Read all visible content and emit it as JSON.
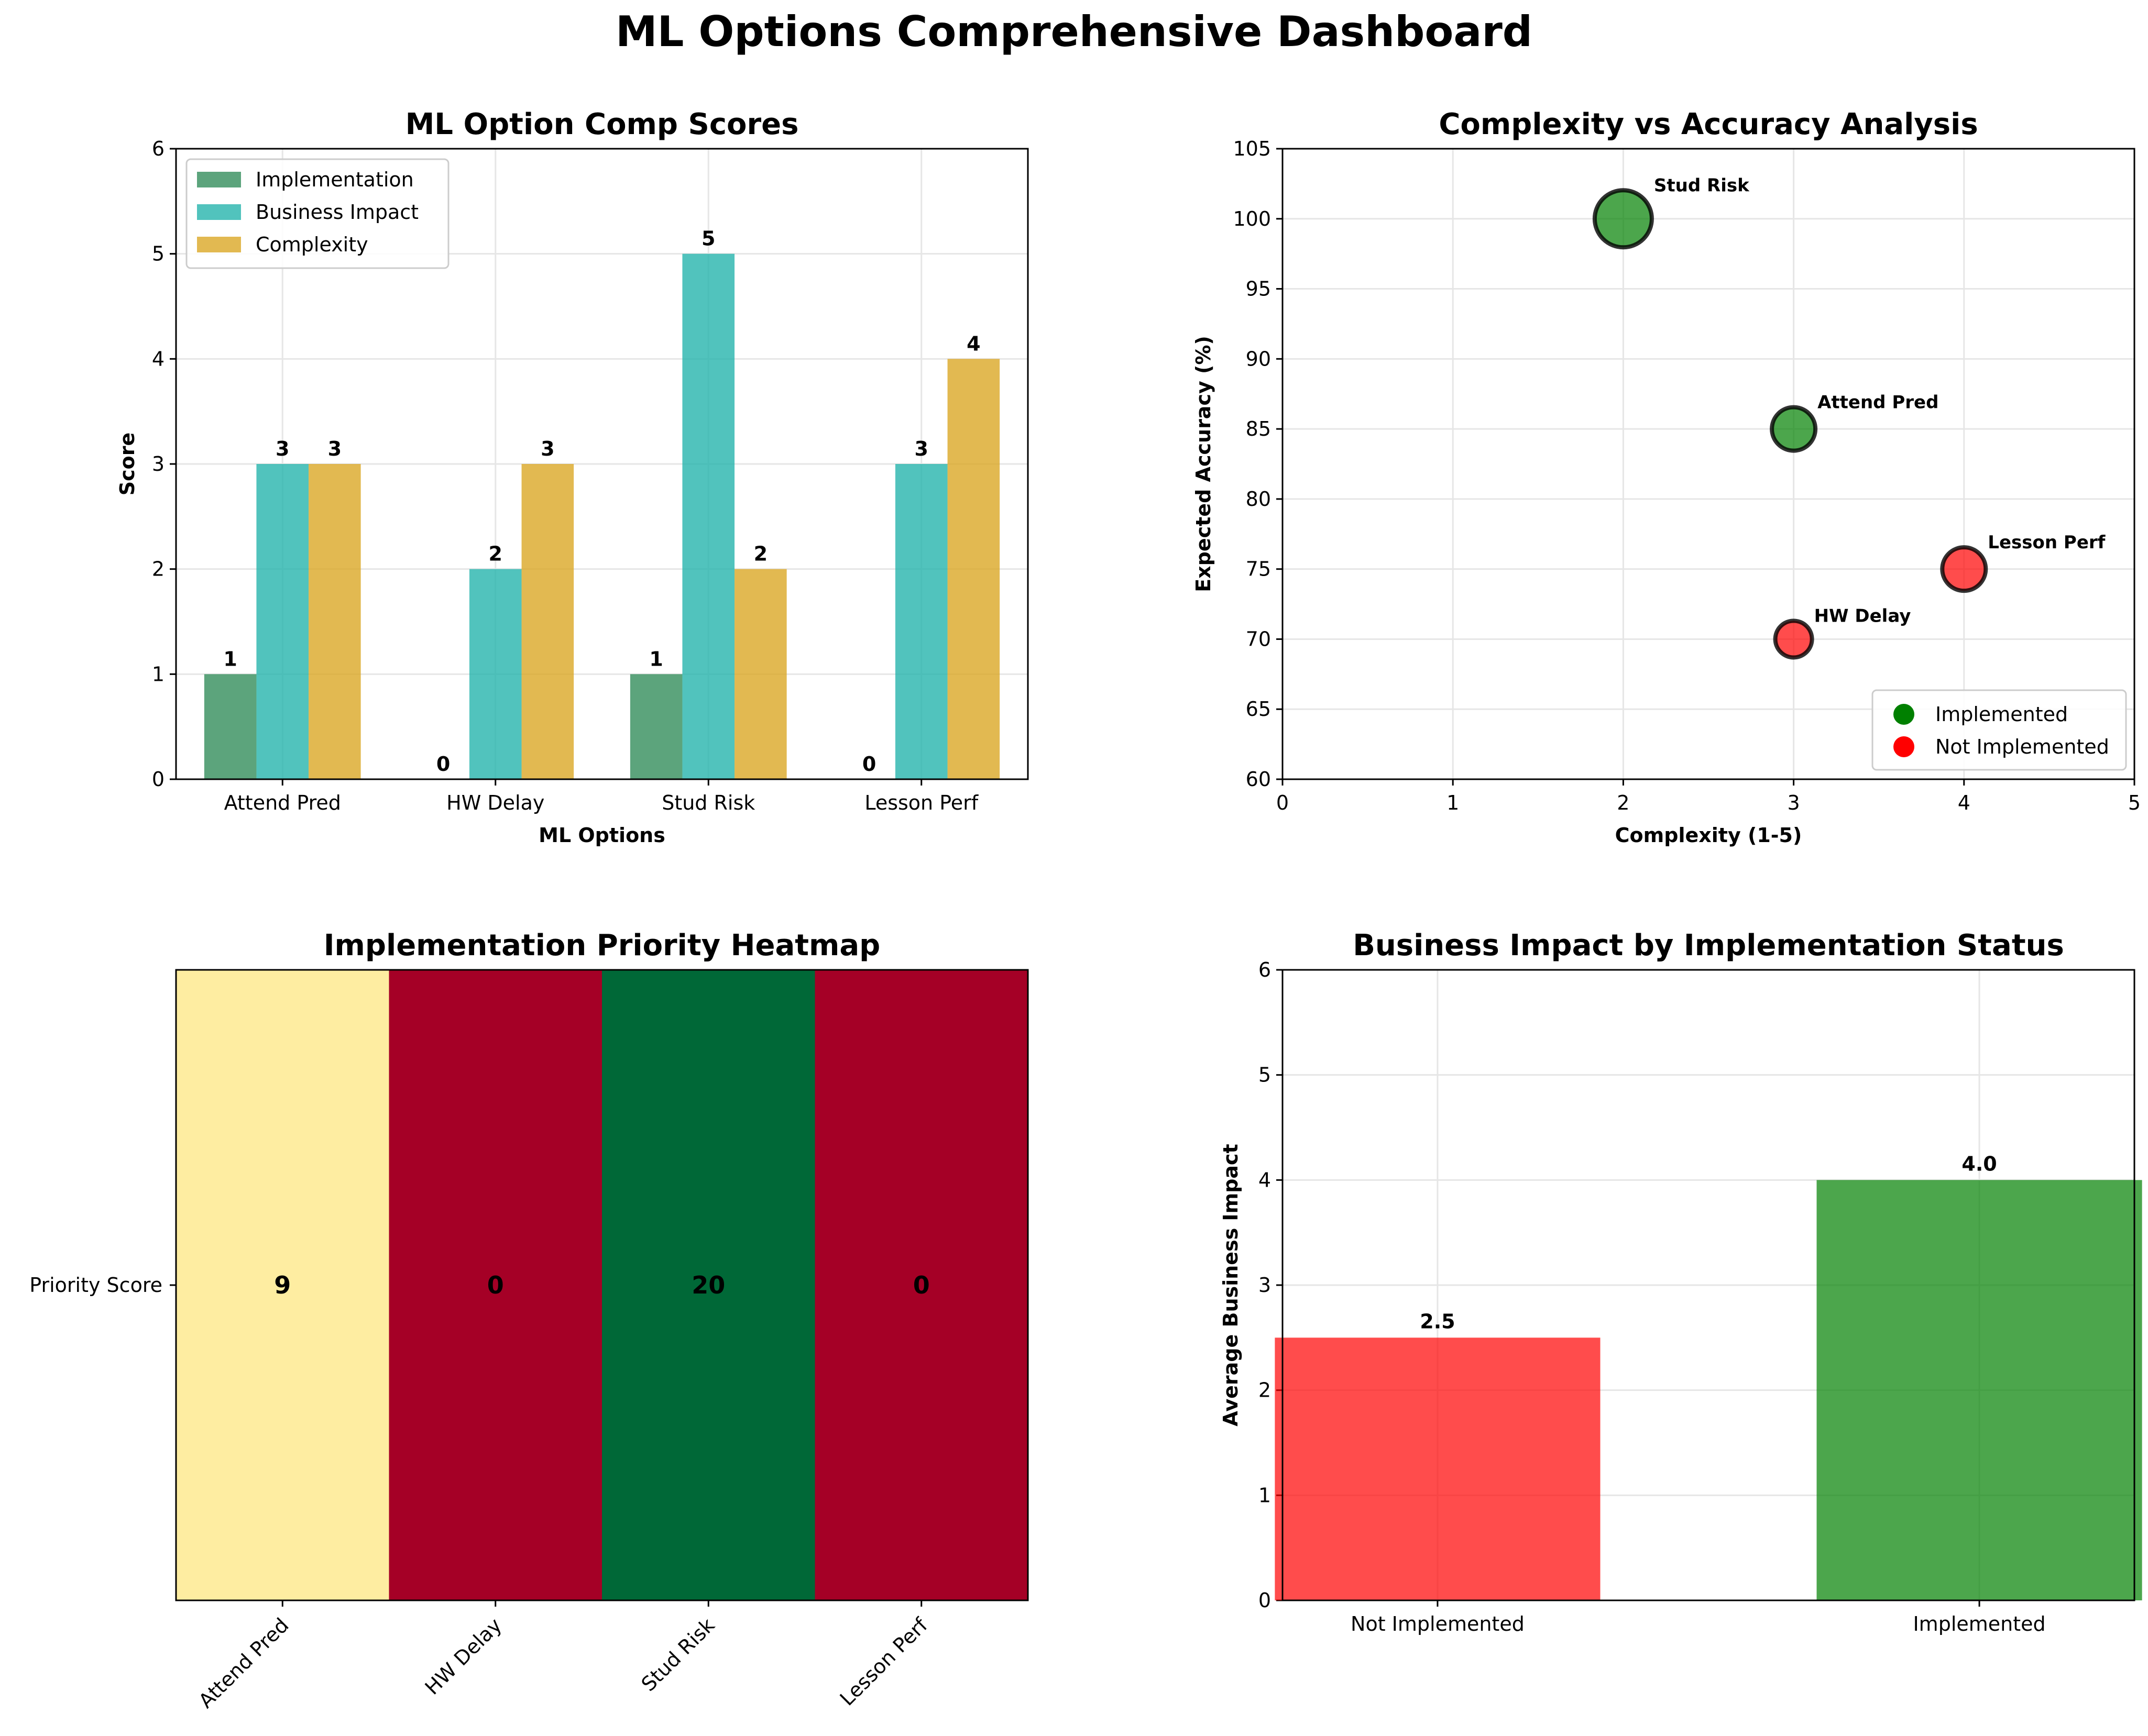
{
  "dashboard": {
    "title": "ML Options Comprehensive Dashboard"
  },
  "colors": {
    "implementation": "#2e8b57",
    "business_impact": "#20b2aa",
    "complexity": "#daa520",
    "implemented": "#008000",
    "not_implemented": "#ff0000",
    "heat_high": "#006837",
    "heat_mid": "#feeda1",
    "heat_low": "#a50026",
    "grid": "#e6e6e6"
  },
  "chart_data": [
    {
      "id": "comp_scores",
      "type": "bar",
      "title": "ML Option Comp Scores",
      "xlabel": "ML Options",
      "ylabel": "Score",
      "ylim": [
        0,
        6
      ],
      "yticks": [
        0,
        1,
        2,
        3,
        4,
        5,
        6
      ],
      "grid": true,
      "legend_position": "top-left",
      "categories": [
        "Attend Pred",
        "HW Delay",
        "Stud Risk",
        "Lesson Perf"
      ],
      "series": [
        {
          "name": "Implementation",
          "values": [
            1,
            0,
            1,
            0
          ],
          "color": "#2e8b57"
        },
        {
          "name": "Business Impact",
          "values": [
            3,
            2,
            5,
            3
          ],
          "color": "#20b2aa"
        },
        {
          "name": "Complexity",
          "values": [
            3,
            3,
            2,
            4
          ],
          "color": "#daa520"
        }
      ]
    },
    {
      "id": "complexity_accuracy",
      "type": "scatter",
      "title": "Complexity vs Accuracy Analysis",
      "xlabel": "Complexity (1-5)",
      "ylabel": "Expected Accuracy (%)",
      "xlim": [
        0,
        5
      ],
      "ylim": [
        60,
        105
      ],
      "xticks": [
        0,
        1,
        2,
        3,
        4,
        5
      ],
      "yticks": [
        60,
        65,
        70,
        75,
        80,
        85,
        90,
        95,
        100,
        105
      ],
      "grid": true,
      "legend_position": "bottom-right",
      "legend": [
        {
          "label": "Implemented",
          "color": "#008000"
        },
        {
          "label": "Not Implemented",
          "color": "#ff0000"
        }
      ],
      "points": [
        {
          "label": "Attend Pred",
          "x": 3,
          "y": 85,
          "business_impact": 3,
          "implemented": true
        },
        {
          "label": "HW Delay",
          "x": 3,
          "y": 70,
          "business_impact": 2,
          "implemented": false
        },
        {
          "label": "Stud Risk",
          "x": 2,
          "y": 100,
          "business_impact": 5,
          "implemented": true
        },
        {
          "label": "Lesson Perf",
          "x": 4,
          "y": 75,
          "business_impact": 3,
          "implemented": false
        }
      ]
    },
    {
      "id": "priority_heatmap",
      "type": "heatmap",
      "title": "Implementation Priority Heatmap",
      "row_labels": [
        "Priority Score"
      ],
      "column_labels": [
        "Attend Pred",
        "HW Delay",
        "Stud Risk",
        "Lesson Perf"
      ],
      "values": [
        [
          9,
          0,
          20,
          0
        ]
      ]
    },
    {
      "id": "impact_by_status",
      "type": "bar",
      "title": "Business Impact by Implementation Status",
      "xlabel": "",
      "ylabel": "Average Business Impact",
      "ylim": [
        0,
        6
      ],
      "yticks": [
        0,
        1,
        2,
        3,
        4,
        5,
        6
      ],
      "grid": true,
      "categories": [
        "Not Implemented",
        "Implemented"
      ],
      "values": [
        2.5,
        4.0
      ],
      "value_labels": [
        "2.5",
        "4.0"
      ],
      "colors": [
        "#ff0000",
        "#008000"
      ]
    }
  ]
}
